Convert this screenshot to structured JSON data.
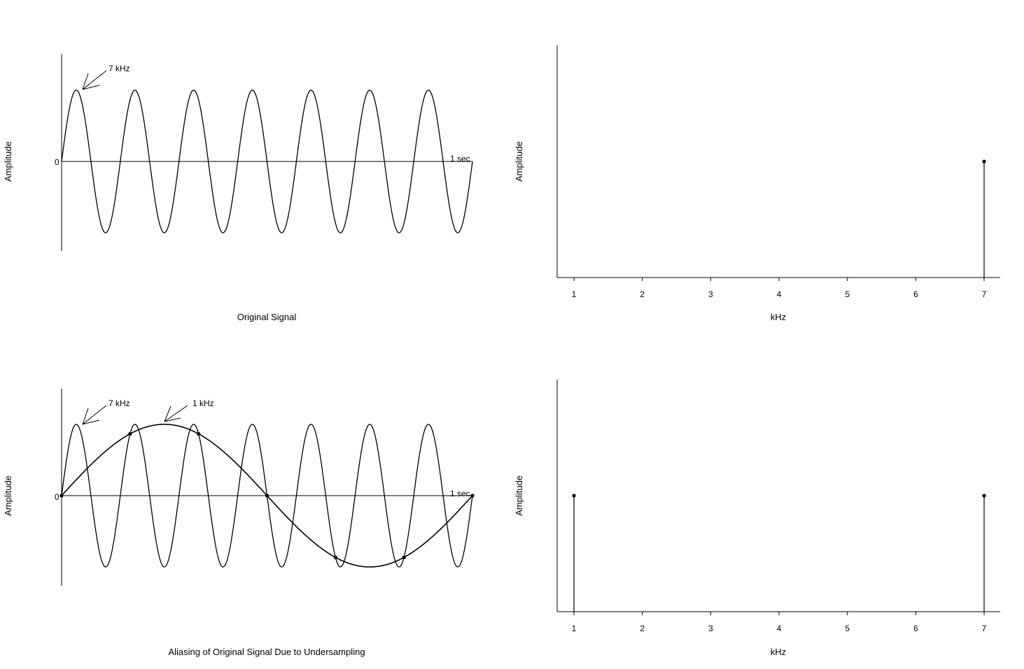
{
  "panels": {
    "time_original": {
      "caption": "Original Signal",
      "ylabel": "Amplitude",
      "zero_label": "0",
      "end_label": "1 sec",
      "annotations": [
        "7 kHz"
      ]
    },
    "spectrum_original": {
      "ylabel": "Amplitude",
      "xlabel": "kHz"
    },
    "time_aliased": {
      "caption": "Aliasing of Original Signal Due to Undersampling",
      "ylabel": "Amplitude",
      "zero_label": "0",
      "end_label": "1 sec",
      "annotations": [
        "7 kHz",
        "1 kHz"
      ]
    },
    "spectrum_aliased": {
      "ylabel": "Amplitude",
      "xlabel": "kHz"
    }
  },
  "chart_data": [
    {
      "type": "line",
      "caption": "Original Signal",
      "xlabel": "",
      "ylabel": "Amplitude",
      "series": [
        {
          "name": "7 kHz",
          "frequency_khz": 7,
          "amplitude": 1
        }
      ],
      "xlim": [
        0,
        1
      ],
      "ylim": [
        -1.25,
        1.5
      ],
      "x_unit_label": "1 sec"
    },
    {
      "type": "bar",
      "xlabel": "kHz",
      "ylabel": "Amplitude",
      "categories": [
        1,
        2,
        3,
        4,
        5,
        6,
        7
      ],
      "values": [
        0,
        0,
        0,
        0,
        0,
        0,
        1
      ],
      "xlim": [
        0.75,
        7.25
      ],
      "ylim": [
        0,
        2
      ]
    },
    {
      "type": "line",
      "caption": "Aliasing of Original Signal Due to Undersampling",
      "xlabel": "",
      "ylabel": "Amplitude",
      "series": [
        {
          "name": "7 kHz",
          "frequency_khz": 7,
          "amplitude": 1
        },
        {
          "name": "1 kHz",
          "frequency_khz": 1,
          "amplitude": 1
        }
      ],
      "sample_points_x": [
        0,
        0.1667,
        0.3333,
        0.5,
        0.6667,
        0.8333,
        1.0
      ],
      "xlim": [
        0,
        1
      ],
      "ylim": [
        -1.25,
        1.5
      ],
      "x_unit_label": "1 sec"
    },
    {
      "type": "bar",
      "xlabel": "kHz",
      "ylabel": "Amplitude",
      "categories": [
        1,
        2,
        3,
        4,
        5,
        6,
        7
      ],
      "values": [
        1,
        0,
        0,
        0,
        0,
        0,
        1
      ],
      "xlim": [
        0.75,
        7.25
      ],
      "ylim": [
        0,
        2
      ]
    }
  ]
}
